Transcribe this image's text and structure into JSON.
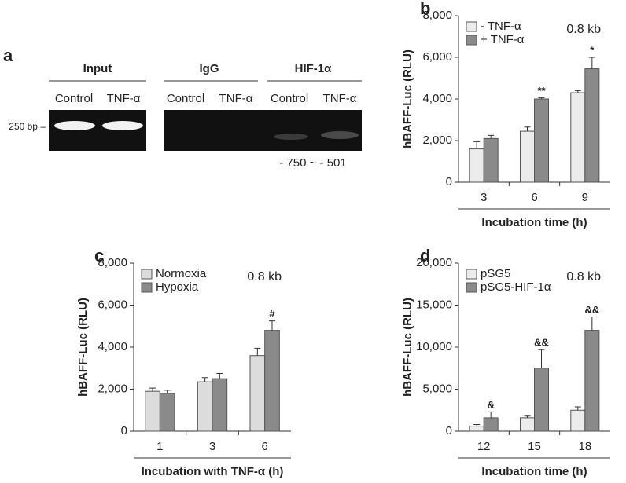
{
  "gel": {
    "panel_label": "a",
    "groups": [
      "Input",
      "IgG",
      "HIF-1α"
    ],
    "lanes": [
      "Control",
      "TNF-α",
      "Control",
      "TNF-α",
      "Control",
      "TNF-α"
    ],
    "marker": "250 bp –",
    "region": "- 750 ~ - 501"
  },
  "chart_data": [
    {
      "type": "bar",
      "panel_label": "b",
      "y_label": "hBAFF-Luc (RLU)",
      "x_label": "Incubation time (h)",
      "note": "0.8 kb",
      "legend": "upper left",
      "categories": [
        "3",
        "6",
        "9"
      ],
      "series": [
        {
          "name": "- TNF-α",
          "color": "#ececec",
          "values": [
            1600,
            2450,
            4300
          ],
          "errors": [
            350,
            200,
            100
          ]
        },
        {
          "name": "+ TNF-α",
          "color": "#8a8a8a",
          "values": [
            2100,
            4000,
            5450
          ],
          "errors": [
            150,
            50,
            550
          ]
        }
      ],
      "annotations": [
        null,
        "**",
        "*"
      ],
      "ylim": [
        0,
        8000
      ],
      "yticks": [
        0,
        {
          "value": 2000,
          "label": "2,000"
        },
        {
          "value": 4000,
          "label": "4,000"
        },
        {
          "value": 6000,
          "label": "6,000"
        },
        {
          "value": 8000,
          "label": "8,000"
        }
      ]
    },
    {
      "type": "bar",
      "panel_label": "c",
      "y_label": "hBAFF-Luc (RLU)",
      "x_label": "Incubation with TNF-α (h)",
      "note": "0.8 kb",
      "legend": "upper left",
      "categories": [
        "1",
        "3",
        "6"
      ],
      "series": [
        {
          "name": "Normoxia",
          "color": "#dcdcdc",
          "values": [
            1900,
            2350,
            3600
          ],
          "errors": [
            150,
            200,
            350
          ]
        },
        {
          "name": "Hypoxia",
          "color": "#8a8a8a",
          "values": [
            1800,
            2500,
            4800
          ],
          "errors": [
            150,
            250,
            450
          ]
        }
      ],
      "annotations": [
        null,
        null,
        "#"
      ],
      "ylim": [
        0,
        8000
      ],
      "yticks": [
        0,
        {
          "value": 2000,
          "label": "2,000"
        },
        {
          "value": 4000,
          "label": "4,000"
        },
        {
          "value": 6000,
          "label": "6,000"
        },
        {
          "value": 8000,
          "label": "8,000"
        }
      ]
    },
    {
      "type": "bar",
      "panel_label": "d",
      "y_label": "hBAFF-Luc (RLU)",
      "x_label": "Incubation time (h)",
      "note": "0.8 kb",
      "legend": "upper left",
      "categories": [
        "12",
        "15",
        "18"
      ],
      "series": [
        {
          "name": "pSG5",
          "color": "#ececec",
          "values": [
            600,
            1600,
            2500
          ],
          "errors": [
            200,
            200,
            400
          ]
        },
        {
          "name": "pSG5-HIF-1α",
          "color": "#8a8a8a",
          "values": [
            1600,
            7500,
            12000
          ],
          "errors": [
            700,
            2200,
            1600
          ]
        }
      ],
      "annotations": [
        "&",
        "&&",
        "&&"
      ],
      "ylim": [
        0,
        20000
      ],
      "yticks": [
        0,
        {
          "value": 5000,
          "label": "5,000"
        },
        {
          "value": 10000,
          "label": "10,000"
        },
        {
          "value": 15000,
          "label": "15,000"
        },
        {
          "value": 20000,
          "label": "20,000"
        }
      ]
    }
  ]
}
